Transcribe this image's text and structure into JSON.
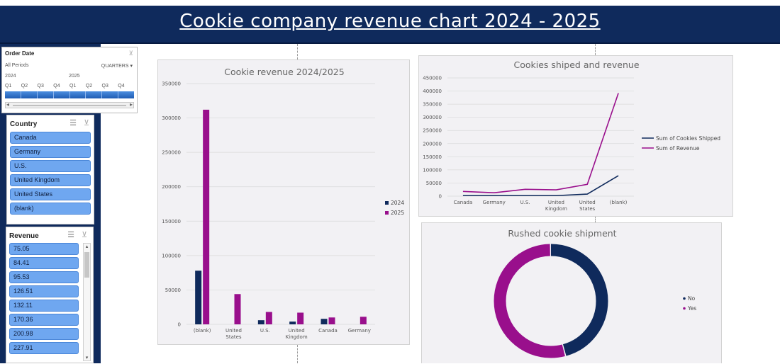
{
  "header": {
    "title": "Cookie  company  revenue  chart 2024 - 2025"
  },
  "timeline": {
    "title": "Order Date",
    "period": "All Periods",
    "level": "QUARTERS",
    "years": [
      "2024",
      "2025"
    ],
    "quarters": [
      "Q1",
      "Q2",
      "Q3",
      "Q4",
      "Q1",
      "Q2",
      "Q3",
      "Q4"
    ]
  },
  "country_slicer": {
    "title": "Country",
    "items": [
      "Canada",
      "Germany",
      "U.S.",
      "United Kingdom",
      "United States",
      "(blank)"
    ]
  },
  "revenue_slicer": {
    "title": "Revenue",
    "items": [
      "75.05",
      "84.41",
      "95.53",
      "126.51",
      "132.11",
      "170.36",
      "200.98",
      "227.91"
    ]
  },
  "colors": {
    "navy": "#0f2a5c",
    "magenta": "#990f8c",
    "slicer_blue": "#6fa7f0"
  },
  "chart_data": [
    {
      "type": "bar",
      "title": "Cookie revenue 2024/2025",
      "categories": [
        "(blank)",
        "United States",
        "U.S.",
        "United Kingdom",
        "Canada",
        "Germany"
      ],
      "series": [
        {
          "name": "2024",
          "color": "#0f2a5c",
          "values": [
            78000,
            0,
            6000,
            4000,
            8000,
            0
          ]
        },
        {
          "name": "2025",
          "color": "#990f8c",
          "values": [
            312000,
            44000,
            18000,
            17000,
            10000,
            11000
          ]
        }
      ],
      "ylim": [
        0,
        350000
      ],
      "yticks": [
        "0",
        "50000",
        "100000",
        "150000",
        "200000",
        "250000",
        "300000",
        "350000"
      ],
      "legend": "right",
      "grid": true
    },
    {
      "type": "line",
      "title": "Cookies shiped and  revenue",
      "categories": [
        "Canada",
        "Germany",
        "U.S.",
        "United Kingdom",
        "United States",
        "(blank)"
      ],
      "series": [
        {
          "name": "Sum of Cookies Shipped",
          "color": "#0f2a5c",
          "values": [
            2000,
            2000,
            2000,
            2000,
            8000,
            78000
          ]
        },
        {
          "name": "Sum of Revenue",
          "color": "#990f8c",
          "values": [
            18000,
            13000,
            26000,
            24000,
            45000,
            392000
          ]
        }
      ],
      "ylim": [
        0,
        450000
      ],
      "yticks": [
        "0",
        "50000",
        "100000",
        "150000",
        "200000",
        "250000",
        "300000",
        "350000",
        "400000",
        "450000"
      ],
      "legend": "right",
      "grid": true
    },
    {
      "type": "pie",
      "title": "Rushed cookie shipment",
      "labels": [
        "No",
        "Yes"
      ],
      "values": [
        46,
        54
      ],
      "colors": [
        "#0f2a5c",
        "#990f8c"
      ],
      "donut": true,
      "legend": "right"
    }
  ]
}
